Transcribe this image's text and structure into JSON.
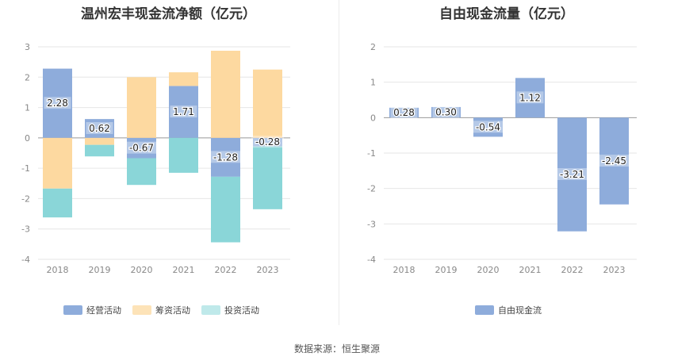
{
  "source_label": "数据来源：恒生聚源",
  "colors": {
    "operating": "#8eacdb",
    "financing": "#fdd9a0",
    "investing": "#8ad6d8",
    "free": "#8eacdb"
  },
  "chart_data": [
    {
      "type": "bar",
      "title": "温州宏丰现金流净额（亿元）",
      "categories": [
        "2018",
        "2019",
        "2020",
        "2021",
        "2022",
        "2023"
      ],
      "ylim": [
        -4,
        3
      ],
      "yticks": [
        3,
        2,
        1,
        0,
        -1,
        -2,
        -3,
        -4
      ],
      "stacked": true,
      "series": [
        {
          "name": "经营活动",
          "values": [
            2.28,
            0.62,
            -0.67,
            1.71,
            -1.28,
            -0.28
          ],
          "labels": [
            "2.28",
            "0.62",
            "-0.67",
            "1.71",
            "-1.28",
            "-0.28"
          ]
        },
        {
          "name": "筹资活动",
          "values": [
            -1.67,
            -0.23,
            2.0,
            0.45,
            2.87,
            2.25
          ]
        },
        {
          "name": "投资活动",
          "values": [
            -0.95,
            -0.38,
            -0.88,
            -1.15,
            -2.16,
            -2.07
          ]
        }
      ],
      "legend_position": "bottom"
    },
    {
      "type": "bar",
      "title": "自由现金流量（亿元）",
      "categories": [
        "2018",
        "2019",
        "2020",
        "2021",
        "2022",
        "2023"
      ],
      "ylim": [
        -4,
        2
      ],
      "yticks": [
        2,
        1,
        0,
        -1,
        -2,
        -3,
        -4
      ],
      "series": [
        {
          "name": "自由现金流",
          "values": [
            0.28,
            0.3,
            -0.54,
            1.12,
            -3.21,
            -2.45
          ],
          "labels": [
            "0.28",
            "0.30",
            "-0.54",
            "1.12",
            "-3.21",
            "-2.45"
          ]
        }
      ],
      "legend_position": "bottom"
    }
  ]
}
